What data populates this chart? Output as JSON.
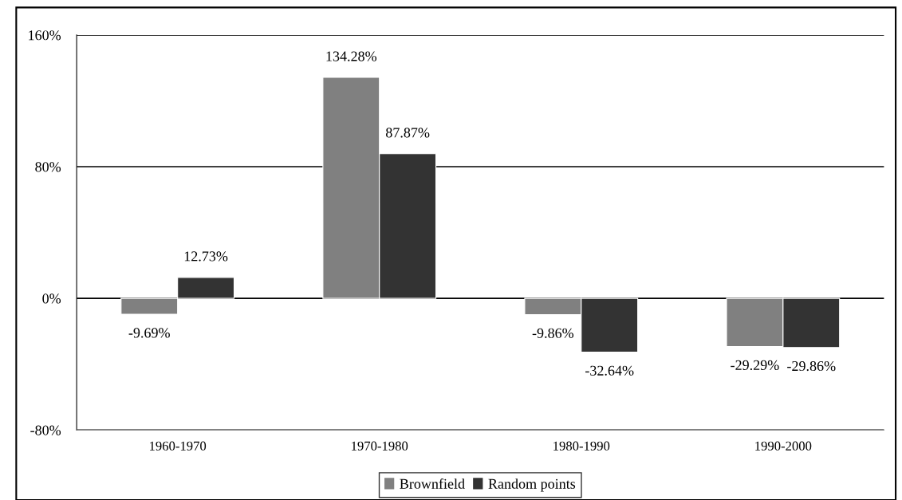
{
  "chart_data": {
    "type": "bar",
    "categories": [
      "1960-1970",
      "1970-1980",
      "1980-1990",
      "1990-2000"
    ],
    "series": [
      {
        "name": "Brownfield",
        "color": "#808080",
        "values": [
          -9.69,
          134.28,
          -9.86,
          -29.29
        ],
        "value_labels": [
          "-9.69%",
          "134.28%",
          "-9.86%",
          "-29.29%"
        ]
      },
      {
        "name": "Random points",
        "color": "#333333",
        "values": [
          12.73,
          87.87,
          -32.64,
          -29.86
        ],
        "value_labels": [
          "12.73%",
          "87.87%",
          "-32.64%",
          "-29.86%"
        ]
      }
    ],
    "ylim": [
      -80,
      160
    ],
    "yticks": [
      {
        "value": -80,
        "label": "-80%"
      },
      {
        "value": 0,
        "label": "0%"
      },
      {
        "value": 80,
        "label": "80%"
      },
      {
        "value": 160,
        "label": "160%"
      }
    ],
    "grid": "y",
    "legend": "bottom"
  }
}
